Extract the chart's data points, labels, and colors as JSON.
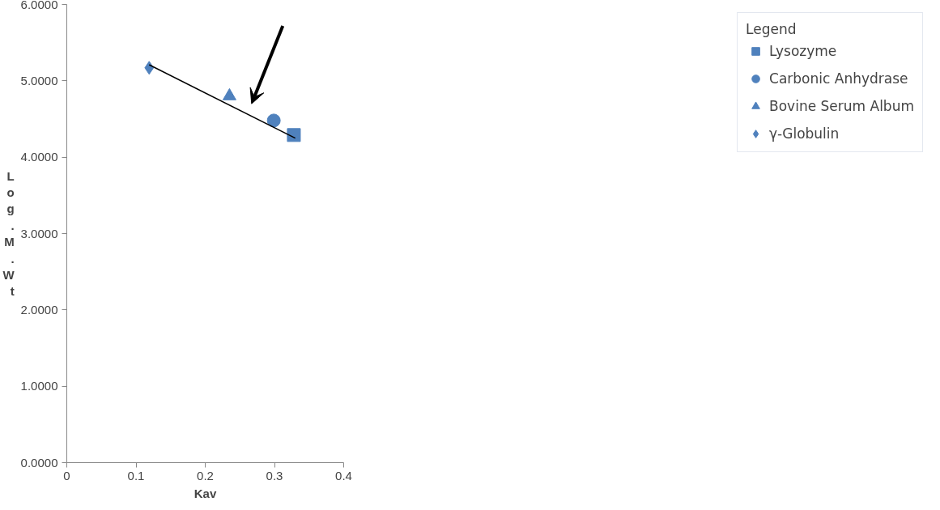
{
  "chart_data": {
    "type": "scatter",
    "xlabel": "Kav",
    "ylabel": "Log.M.Wt",
    "legend_title": "Legend",
    "legend": "right",
    "xlim": [
      0,
      0.4
    ],
    "xticks": [
      0,
      0.1,
      0.2,
      0.3,
      0.4
    ],
    "ylim": [
      0,
      6
    ],
    "yticks": [
      {
        "value": 0,
        "label": "0.0000"
      },
      {
        "value": 1,
        "label": "1.0000"
      },
      {
        "value": 2,
        "label": "2.0000"
      },
      {
        "value": 3,
        "label": "3.0000"
      },
      {
        "value": 4,
        "label": "4.0000"
      },
      {
        "value": 5,
        "label": "5.0000"
      },
      {
        "value": 6,
        "label": "6.0000"
      }
    ],
    "grid": false,
    "series": [
      {
        "name": "Lysozyme",
        "color": "#4f81bd",
        "marker": "square",
        "x": [
          0.328
        ],
        "values": [
          4.29
        ]
      },
      {
        "name": "Carbonic Anhydrase",
        "color": "#4f81bd",
        "marker": "circle",
        "x": [
          0.299
        ],
        "values": [
          4.48
        ]
      },
      {
        "name": "Bovine Serum Album",
        "color": "#4f81bd",
        "marker": "triangle",
        "x": [
          0.235
        ],
        "values": [
          4.8
        ]
      },
      {
        "name": "γ-Globulin",
        "color": "#4f81bd",
        "marker": "diamond",
        "x": [
          0.119
        ],
        "values": [
          5.17
        ]
      },
      {
        "type": "line",
        "color": "#000000",
        "x": [
          0.119,
          0.33
        ],
        "values": [
          5.21,
          4.25
        ]
      }
    ]
  }
}
